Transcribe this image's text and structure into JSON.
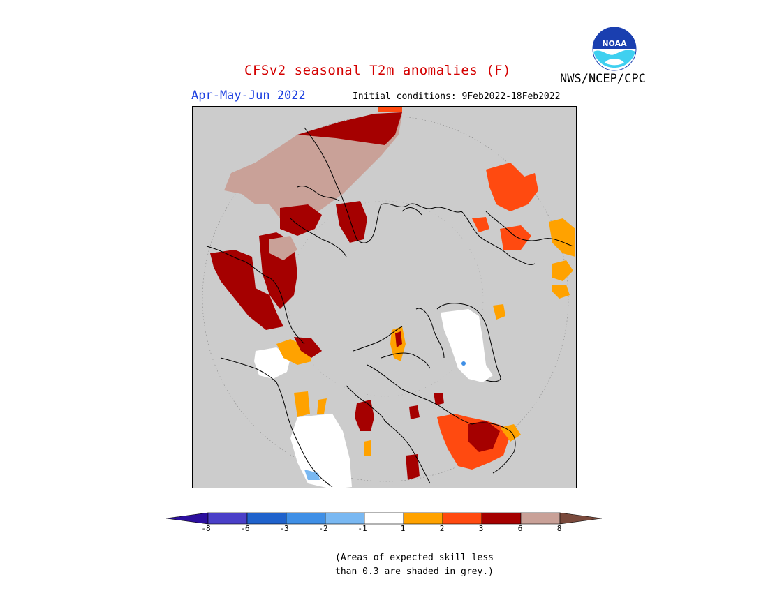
{
  "header": {
    "title": "CFSv2 seasonal T2m anomalies (F)",
    "agency": "NWS/NCEP/CPC",
    "logo_text": "NOAA",
    "period": "Apr-May-Jun 2022",
    "initial_conditions": "Initial conditions: 9Feb2022-18Feb2022"
  },
  "legend": {
    "ticks": [
      "-8",
      "-6",
      "-3",
      "-2",
      "-1",
      "1",
      "2",
      "3",
      "6",
      "8"
    ],
    "colors": [
      "#2c0f9e",
      "#4a3fc8",
      "#1f62cc",
      "#3f8fe6",
      "#79b8f2",
      "#ffffff",
      "#ffa200",
      "#ff4a10",
      "#a50000",
      "#c9a198",
      "#7a4a3c"
    ]
  },
  "map": {
    "projection": "north-polar-stereographic",
    "background_color": "#cccccc",
    "coastline_color": "#000000"
  },
  "note": {
    "line1": "(Areas of expected skill less",
    "line2": "than 0.3 are shaded in grey.)"
  }
}
